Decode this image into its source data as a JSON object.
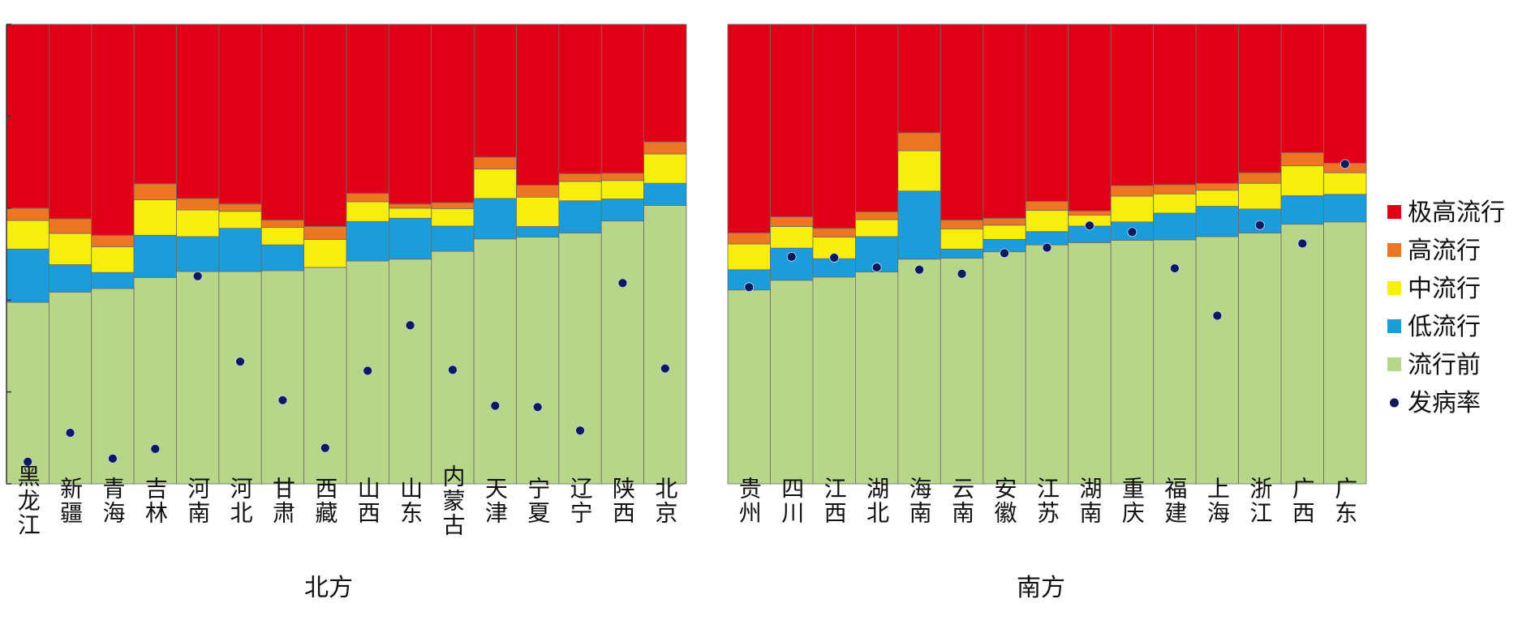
{
  "chart_data": [
    {
      "type": "bar",
      "stacked": true,
      "group_label": "北方",
      "categories": [
        "黑龙江",
        "新疆",
        "青海",
        "吉林",
        "河南",
        "河北",
        "甘肃",
        "西藏",
        "山西",
        "山东",
        "内蒙古",
        "天津",
        "宁夏",
        "辽宁",
        "陕西",
        "北京"
      ],
      "series": [
        {
          "name": "流行前",
          "values": [
            39.5,
            41.7,
            42.5,
            44.9,
            46.2,
            46.2,
            46.4,
            47.1,
            48.5,
            48.9,
            50.6,
            53.3,
            53.7,
            54.6,
            57.2,
            60.6
          ]
        },
        {
          "name": "低流行",
          "values": [
            11.6,
            6.0,
            3.5,
            9.2,
            7.6,
            9.4,
            5.6,
            0,
            8.6,
            8.9,
            5.5,
            8.8,
            2.3,
            7.0,
            4.8,
            4.8
          ]
        },
        {
          "name": "中流行",
          "values": [
            6.2,
            6.8,
            5.6,
            7.7,
            5.8,
            3.7,
            3.8,
            6.1,
            4.3,
            2.2,
            3.8,
            6.4,
            6.4,
            4.2,
            4.0,
            6.4
          ]
        },
        {
          "name": "高流行",
          "values": [
            2.7,
            3.2,
            2.5,
            3.5,
            2.5,
            1.6,
            1.6,
            2.8,
            1.8,
            0.9,
            1.3,
            2.6,
            2.6,
            1.7,
            1.6,
            2.6
          ]
        },
        {
          "name": "极高流行",
          "values": [
            40.0,
            42.3,
            45.9,
            34.7,
            37.9,
            39.1,
            42.6,
            44.0,
            36.8,
            39.1,
            38.8,
            28.9,
            35.0,
            32.5,
            32.4,
            25.6
          ]
        }
      ],
      "incidence": [
        4.8,
        11.1,
        5.5,
        7.6,
        45.2,
        26.6,
        18.2,
        7.8,
        24.6,
        34.5,
        24.8,
        17.0,
        16.7,
        11.6,
        43.7,
        25.1
      ],
      "ylim": [
        0,
        100
      ],
      "xlabel": "",
      "ylabel": ""
    },
    {
      "type": "bar",
      "stacked": true,
      "group_label": "南方",
      "categories": [
        "贵州",
        "四川",
        "江西",
        "湖北",
        "海南",
        "云南",
        "安徽",
        "江苏",
        "湖南",
        "重庆",
        "福建",
        "上海",
        "浙江",
        "广西",
        "广东"
      ],
      "series": [
        {
          "name": "流行前",
          "values": [
            42.2,
            44.3,
            45.0,
            46.1,
            48.9,
            49.1,
            50.5,
            52.0,
            52.5,
            53.0,
            53.1,
            53.8,
            54.6,
            56.5,
            57.0
          ]
        },
        {
          "name": "低流行",
          "values": [
            4.4,
            7.0,
            4.0,
            7.7,
            14.8,
            2.0,
            2.7,
            2.9,
            3.6,
            4.0,
            5.8,
            6.6,
            5.2,
            6.2,
            6.0
          ]
        },
        {
          "name": "中流行",
          "values": [
            5.6,
            4.7,
            4.7,
            3.7,
            8.8,
            4.4,
            3.1,
            4.6,
            2.4,
            5.6,
            4.2,
            3.5,
            5.6,
            6.5,
            4.7
          ]
        },
        {
          "name": "高流行",
          "values": [
            2.4,
            2.1,
            1.9,
            1.7,
            3.9,
            1.9,
            1.5,
            2.0,
            0.9,
            2.3,
            2.0,
            1.5,
            2.3,
            2.9,
            2.1
          ]
        },
        {
          "name": "极高流行",
          "values": [
            45.4,
            41.9,
            44.4,
            40.8,
            23.6,
            42.6,
            42.2,
            38.5,
            40.6,
            35.1,
            34.9,
            34.6,
            32.3,
            27.9,
            30.2
          ]
        }
      ],
      "incidence": [
        42.8,
        49.4,
        49.2,
        47.1,
        46.6,
        45.7,
        50.2,
        51.4,
        56.2,
        54.8,
        46.9,
        36.6,
        56.3,
        52.3,
        69.6
      ],
      "ylim": [
        0,
        100
      ],
      "xlabel": "",
      "ylabel": ""
    }
  ],
  "legend": {
    "position": "right",
    "entries": [
      {
        "label": "极高流行",
        "color": "#E00015",
        "marker": "square"
      },
      {
        "label": "高流行",
        "color": "#EC7622",
        "marker": "square"
      },
      {
        "label": "中流行",
        "color": "#F7EF0B",
        "marker": "square"
      },
      {
        "label": "低流行",
        "color": "#1B9DD9",
        "marker": "square"
      },
      {
        "label": "流行前",
        "color": "#B8D68A",
        "marker": "square"
      },
      {
        "label": "发病率",
        "color": "#0B1B5A",
        "marker": "dot"
      }
    ]
  },
  "colors": {
    "流行前": "#B8D68A",
    "低流行": "#1B9DD9",
    "中流行": "#F7EF0B",
    "高流行": "#EC7622",
    "极高流行": "#E00015",
    "dot": "#0B1B5A",
    "bar_edge": "#6b6b6b",
    "axis": "#333333"
  }
}
